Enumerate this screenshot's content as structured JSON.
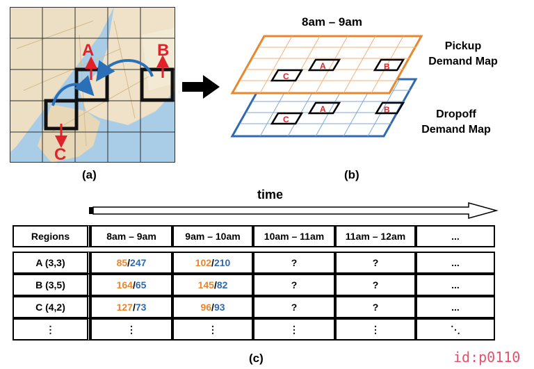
{
  "panel_a": {
    "caption": "(a)",
    "labels": {
      "a": "A",
      "b": "B",
      "c": "C"
    }
  },
  "panel_b": {
    "caption": "(b)",
    "title": "8am – 9am",
    "pickup_label_line1": "Pickup",
    "pickup_label_line2": "Demand Map",
    "dropoff_label_line1": "Dropoff",
    "dropoff_label_line2": "Demand Map",
    "cells": {
      "a": "A",
      "b": "B",
      "c": "C"
    }
  },
  "panel_c": {
    "caption": "(c)",
    "time_label": "time",
    "columns": [
      "Regions",
      "8am – 9am",
      "9am – 10am",
      "10am – 11am",
      "11am – 12am",
      "..."
    ],
    "rows": [
      {
        "region": "A (3,3)",
        "c1_pick": "85",
        "c1_drop": "247",
        "c2_pick": "102",
        "c2_drop": "210",
        "c3": "?",
        "c4": "?",
        "c5": "..."
      },
      {
        "region": "B (3,5)",
        "c1_pick": "164",
        "c1_drop": "65",
        "c2_pick": "145",
        "c2_drop": "82",
        "c3": "?",
        "c4": "?",
        "c5": "..."
      },
      {
        "region": "C (4,2)",
        "c1_pick": "127",
        "c1_drop": "73",
        "c2_pick": "96",
        "c2_drop": "93",
        "c3": "?",
        "c4": "?",
        "c5": "..."
      }
    ],
    "last_row": [
      "⋮",
      "⋮",
      "⋮",
      "⋮",
      "⋮",
      "⋱"
    ],
    "slash": "/"
  },
  "colors": {
    "pickup": "#e8872e",
    "dropoff": "#2f6ab0",
    "accent_red": "#e0232a"
  },
  "watermark": "id:p0110"
}
